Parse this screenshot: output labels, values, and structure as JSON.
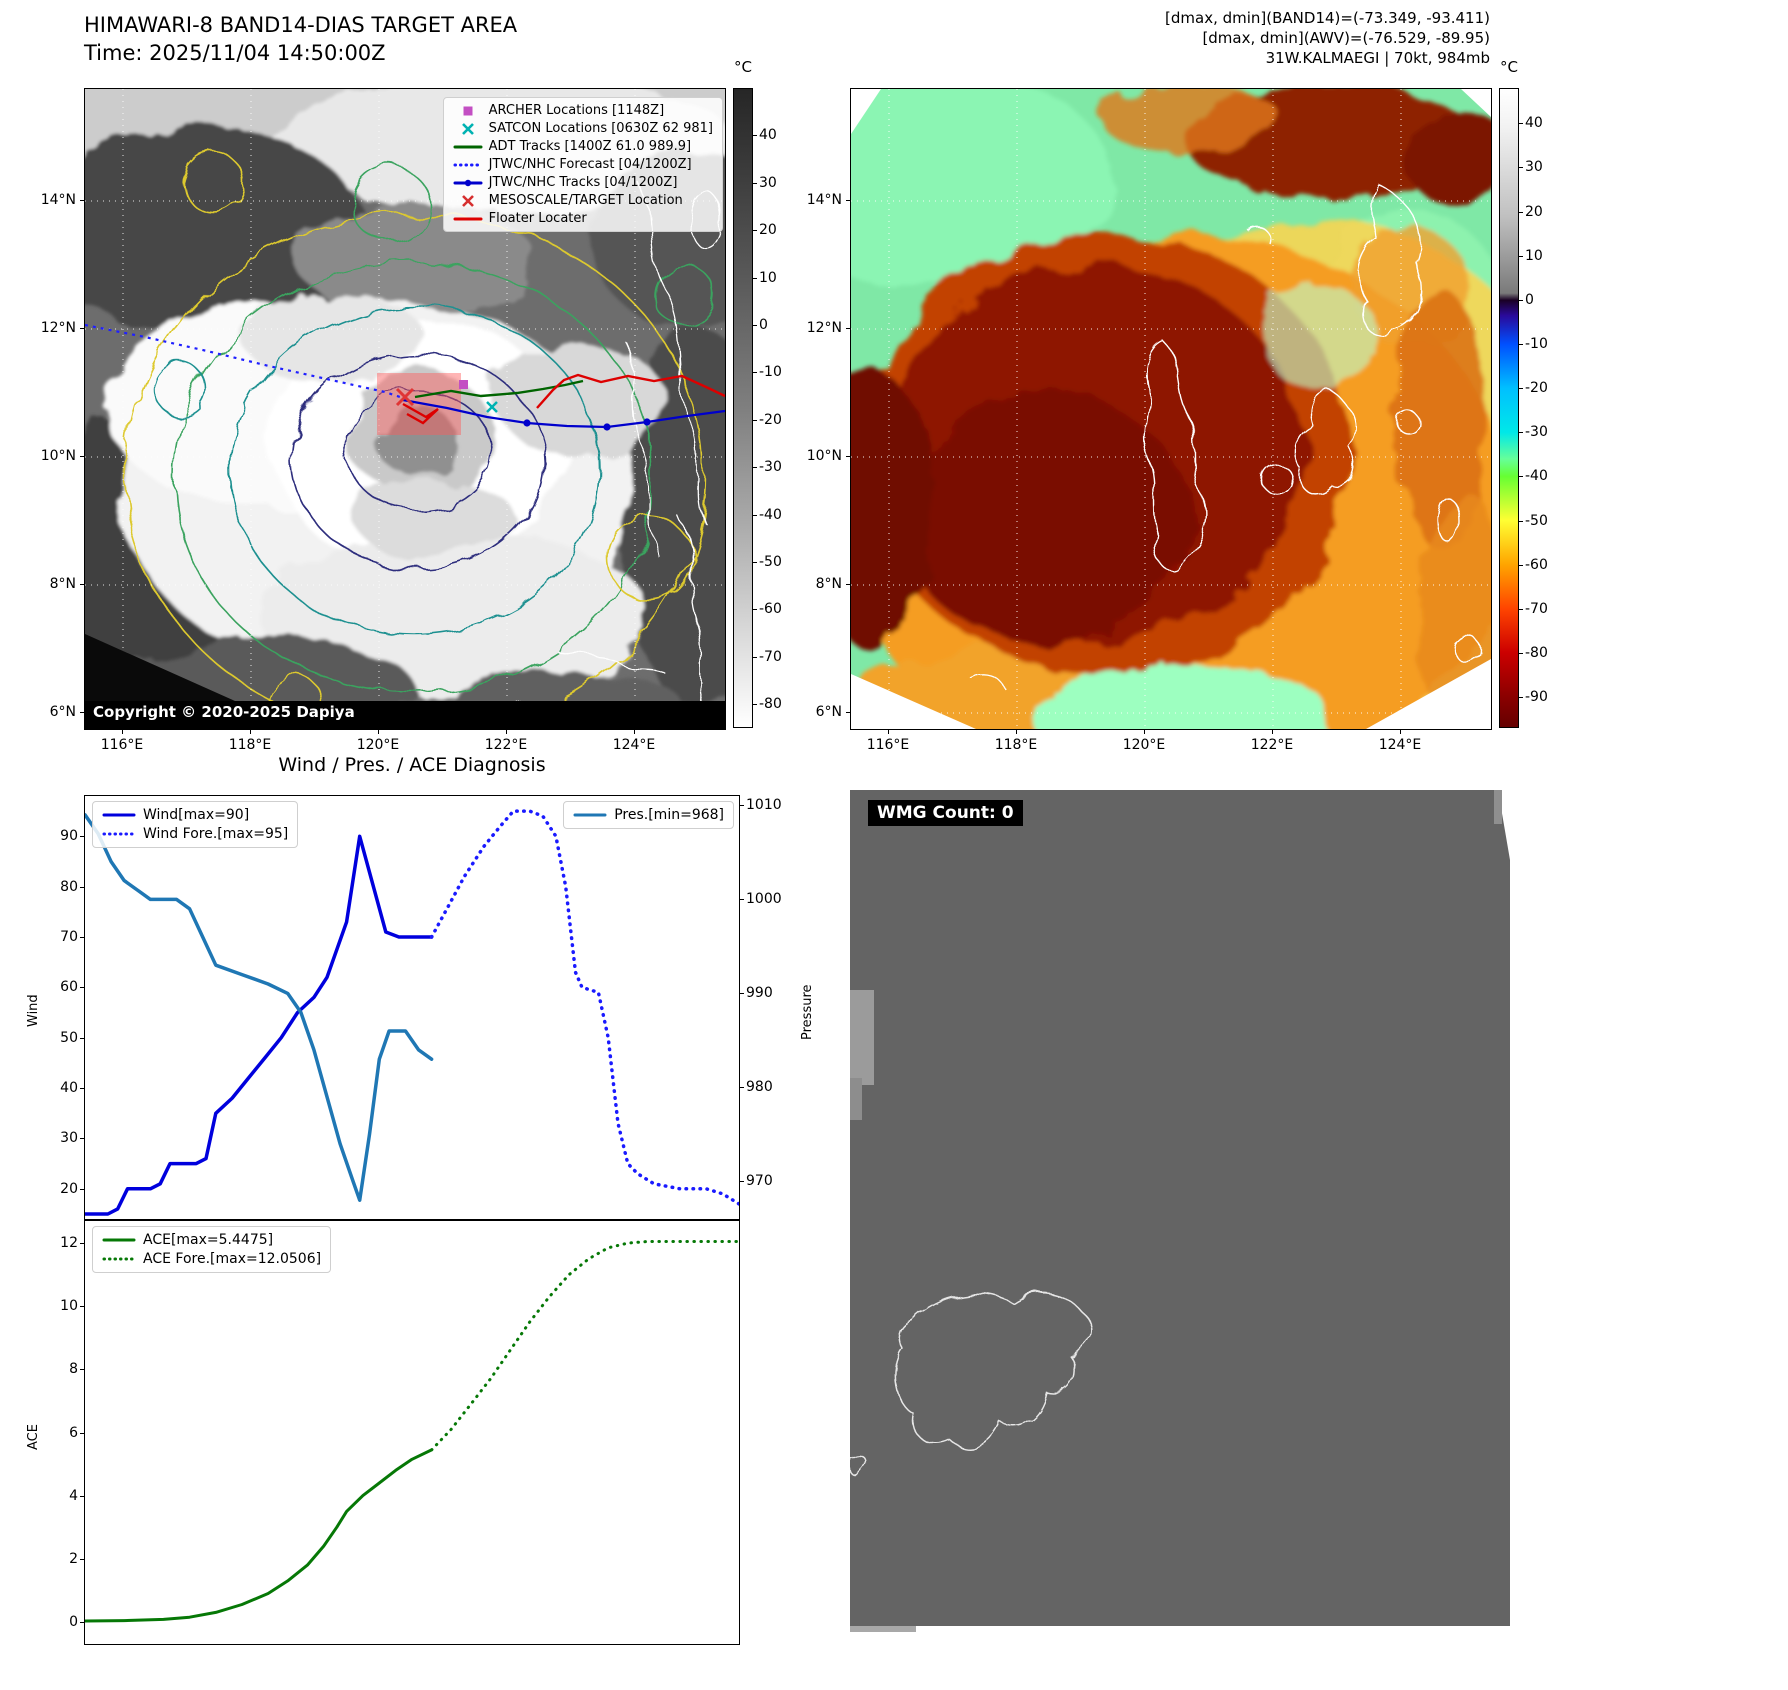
{
  "band14": {
    "title": "HIMAWARI-8 BAND14-DIAS TARGET AREA",
    "time": "Time: 2025/11/04 14:50:00Z",
    "copyright": "Copyright © 2020-2025 Dapiya",
    "colorbar": {
      "unit": "°C",
      "ticks": [
        40,
        30,
        20,
        10,
        0,
        -10,
        -20,
        -30,
        -40,
        -50,
        -60,
        -70,
        -80
      ],
      "vmin": -85,
      "vmax": 50
    },
    "lat_ticks": [
      "14°N",
      "12°N",
      "10°N",
      "8°N",
      "6°N"
    ],
    "lon_ticks": [
      "116°E",
      "118°E",
      "120°E",
      "122°E",
      "124°E"
    ],
    "legend": [
      {
        "label": "ARCHER Locations [1148Z]",
        "marker": "square",
        "color": "#c34fc3"
      },
      {
        "label": "SATCON Locations [0630Z 62 981]",
        "marker": "x",
        "color": "#00b2b2"
      },
      {
        "label": "ADT Tracks [1400Z 61.0 989.9]",
        "marker": "line",
        "color": "#006400"
      },
      {
        "label": "JTWC/NHC Forecast [04/1200Z]",
        "marker": "dotted",
        "color": "#1a1aff"
      },
      {
        "label": "JTWC/NHC Tracks [04/1200Z]",
        "marker": "line-dot",
        "color": "#0000cc"
      },
      {
        "label": "MESOSCALE/TARGET Location",
        "marker": "x",
        "color": "#d62f2f"
      },
      {
        "label": "Floater Locater",
        "marker": "line",
        "color": "#dd0000"
      }
    ]
  },
  "awv": {
    "header_lines": [
      "[dmax, dmin](BAND14)=(-73.349, -93.411)",
      "[dmax, dmin](AWV)=(-76.529, -89.95)",
      "31W.KALMAEGI | 70kt, 984mb"
    ],
    "colorbar": {
      "unit": "°C",
      "ticks": [
        40,
        30,
        20,
        10,
        0,
        -10,
        -20,
        -30,
        -40,
        -50,
        -60,
        -70,
        -80,
        -90
      ],
      "vmin": -97,
      "vmax": 48
    },
    "lat_ticks": [
      "14°N",
      "12°N",
      "10°N",
      "8°N",
      "6°N"
    ],
    "lon_ticks": [
      "116°E",
      "118°E",
      "120°E",
      "122°E",
      "124°E"
    ]
  },
  "wmg": {
    "count_label": "WMG Count: 0"
  },
  "chart_data": [
    {
      "type": "line",
      "title": "Wind / Pres. / ACE Diagnosis",
      "ylabel_left": "Wind",
      "ylabel_right": "Pressure",
      "ylim_left": [
        14,
        98
      ],
      "ylim_right": [
        966,
        1011
      ],
      "yticks_left": [
        20,
        30,
        40,
        50,
        60,
        70,
        80,
        90
      ],
      "yticks_right": [
        970,
        980,
        990,
        1000,
        1010
      ],
      "grid": false,
      "series": [
        {
          "name": "Wind[max=90]",
          "axis": "left",
          "style": "solid",
          "color": "#0000dd",
          "width": 3.5,
          "legend_box": 0,
          "points": [
            [
              0,
              15
            ],
            [
              0.035,
              15
            ],
            [
              0.05,
              16
            ],
            [
              0.065,
              20
            ],
            [
              0.1,
              20
            ],
            [
              0.115,
              21
            ],
            [
              0.13,
              25
            ],
            [
              0.17,
              25
            ],
            [
              0.185,
              26
            ],
            [
              0.2,
              35
            ],
            [
              0.225,
              38
            ],
            [
              0.25,
              42
            ],
            [
              0.275,
              46
            ],
            [
              0.3,
              50
            ],
            [
              0.325,
              55
            ],
            [
              0.35,
              58
            ],
            [
              0.37,
              62
            ],
            [
              0.4,
              73
            ],
            [
              0.42,
              90
            ],
            [
              0.46,
              71
            ],
            [
              0.48,
              70
            ],
            [
              0.53,
              70
            ]
          ]
        },
        {
          "name": "Wind Fore.[max=95]",
          "axis": "left",
          "style": "dotted",
          "color": "#1a1aff",
          "width": 3.5,
          "legend_box": 0,
          "points": [
            [
              0.53,
              70
            ],
            [
              0.555,
              76
            ],
            [
              0.58,
              82
            ],
            [
              0.61,
              88
            ],
            [
              0.635,
              92
            ],
            [
              0.655,
              95
            ],
            [
              0.68,
              95
            ],
            [
              0.7,
              94
            ],
            [
              0.72,
              90
            ],
            [
              0.735,
              80
            ],
            [
              0.75,
              63
            ],
            [
              0.76,
              60
            ],
            [
              0.785,
              59
            ],
            [
              0.8,
              50
            ],
            [
              0.815,
              33
            ],
            [
              0.83,
              25
            ],
            [
              0.845,
              23
            ],
            [
              0.87,
              21
            ],
            [
              0.91,
              20
            ],
            [
              0.95,
              20
            ],
            [
              0.975,
              19
            ],
            [
              1,
              17
            ]
          ]
        },
        {
          "name": "Pres.[min=968]",
          "axis": "right",
          "style": "solid",
          "color": "#1f77b4",
          "width": 3.5,
          "legend_box": 1,
          "points": [
            [
              0,
              1009
            ],
            [
              0.02,
              1007
            ],
            [
              0.04,
              1004
            ],
            [
              0.06,
              1002
            ],
            [
              0.08,
              1001
            ],
            [
              0.1,
              1000
            ],
            [
              0.14,
              1000
            ],
            [
              0.16,
              999
            ],
            [
              0.18,
              996
            ],
            [
              0.2,
              993
            ],
            [
              0.24,
              992
            ],
            [
              0.28,
              991
            ],
            [
              0.31,
              990
            ],
            [
              0.33,
              988
            ],
            [
              0.35,
              984
            ],
            [
              0.37,
              979
            ],
            [
              0.39,
              974
            ],
            [
              0.41,
              970
            ],
            [
              0.42,
              968
            ],
            [
              0.435,
              975
            ],
            [
              0.45,
              983
            ],
            [
              0.465,
              986
            ],
            [
              0.49,
              986
            ],
            [
              0.51,
              984
            ],
            [
              0.53,
              983
            ]
          ]
        }
      ]
    },
    {
      "type": "line",
      "ylabel_left": "ACE",
      "ylim_left": [
        -0.7,
        12.7
      ],
      "yticks_left": [
        0,
        2,
        4,
        6,
        8,
        10,
        12
      ],
      "grid": false,
      "series": [
        {
          "name": "ACE[max=5.4475]",
          "axis": "left",
          "style": "solid",
          "color": "#067806",
          "width": 3,
          "legend_box": 0,
          "points": [
            [
              0,
              0.03
            ],
            [
              0.06,
              0.04
            ],
            [
              0.12,
              0.08
            ],
            [
              0.16,
              0.15
            ],
            [
              0.2,
              0.3
            ],
            [
              0.24,
              0.55
            ],
            [
              0.28,
              0.9
            ],
            [
              0.31,
              1.3
            ],
            [
              0.34,
              1.8
            ],
            [
              0.365,
              2.4
            ],
            [
              0.385,
              3
            ],
            [
              0.4,
              3.5
            ],
            [
              0.425,
              4
            ],
            [
              0.45,
              4.4
            ],
            [
              0.475,
              4.8
            ],
            [
              0.5,
              5.15
            ],
            [
              0.53,
              5.45
            ]
          ]
        },
        {
          "name": "ACE Fore.[max=12.0506]",
          "axis": "left",
          "style": "dotted",
          "color": "#067806",
          "width": 3,
          "legend_box": 0,
          "points": [
            [
              0.53,
              5.45
            ],
            [
              0.56,
              6.1
            ],
            [
              0.59,
              6.9
            ],
            [
              0.62,
              7.7
            ],
            [
              0.65,
              8.6
            ],
            [
              0.68,
              9.5
            ],
            [
              0.71,
              10.3
            ],
            [
              0.74,
              11
            ],
            [
              0.77,
              11.5
            ],
            [
              0.8,
              11.85
            ],
            [
              0.83,
              12
            ],
            [
              0.86,
              12.05
            ],
            [
              0.92,
              12.05
            ],
            [
              1,
              12.05
            ]
          ]
        }
      ]
    }
  ]
}
